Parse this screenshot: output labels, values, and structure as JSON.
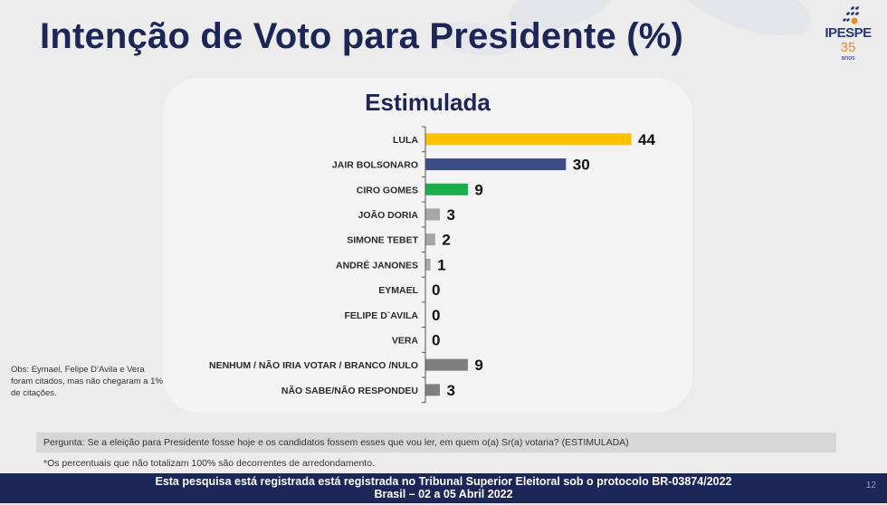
{
  "header": {
    "title": "Intenção de Voto para Presidente (%)"
  },
  "logo": {
    "brand": "IPESPE",
    "number": "35",
    "suffix": "anos"
  },
  "chart_data": {
    "type": "bar",
    "orientation": "horizontal",
    "title": "Estimulada",
    "xlabel": "",
    "ylabel": "",
    "xlim": [
      0,
      44
    ],
    "grid": false,
    "categories": [
      "LULA",
      "JAIR BOLSONARO",
      "CIRO GOMES",
      "JOÃO DORIA",
      "SIMONE TEBET",
      "ANDRÉ JANONES",
      "EYMAEL",
      "FELIPE D`AVILA",
      "VERA",
      "NENHUM / NÃO IRIA VOTAR / BRANCO /NULO",
      "NÃO SABE/NÃO RESPONDEU"
    ],
    "values": [
      44,
      30,
      9,
      3,
      2,
      1,
      0,
      0,
      0,
      9,
      3
    ],
    "colors": [
      "#ffc000",
      "#3c4c84",
      "#1aad4b",
      "#a6a6a6",
      "#a6a6a6",
      "#a6a6a6",
      "#a6a6a6",
      "#a6a6a6",
      "#a6a6a6",
      "#7f7f7f",
      "#7f7f7f"
    ]
  },
  "notes": {
    "obs": "Obs: Eymael, Felipe D’Avila e Vera foram citados, mas não chegaram a 1% de citações.",
    "question": "Pergunta:  Se a eleição para Presidente fosse hoje e os candidatos fossem esses que vou ler, em quem o(a) Sr(a) votaria? (ESTIMULADA)",
    "rounding": "*Os percentuais que não totalizam 100% são decorrentes de arredondamento."
  },
  "footer": {
    "line1": "Esta pesquisa está registrada está registrada no Tribunal Superior Eleitoral sob o protocolo BR-03874/2022",
    "line2": "Brasil – 02 a 05 Abril 2022",
    "page_number": "12"
  },
  "colors": {
    "title": "#1c2657",
    "footer_bg": "#1c2657"
  }
}
